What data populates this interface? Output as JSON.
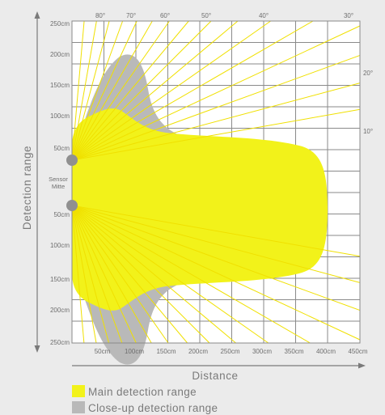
{
  "chart_data": {
    "type": "diagram",
    "ylabel": "Detection range",
    "xlabel": "Distance",
    "x_ticks": [
      "50cm",
      "100cm",
      "150cm",
      "200cm",
      "250cm",
      "300cm",
      "350cm",
      "400cm",
      "450cm"
    ],
    "y_ticks_top": [
      "250cm",
      "200cm",
      "150cm",
      "100cm",
      "50cm"
    ],
    "y_ticks_bottom": [
      "50cm",
      "100cm",
      "150cm",
      "200cm",
      "250cm"
    ],
    "sensor_label_line1": "Sensor",
    "sensor_label_line2": "Mitte",
    "angle_labels": [
      "80°",
      "70°",
      "60°",
      "50°",
      "40°",
      "30°",
      "20°",
      "10°"
    ],
    "legend": [
      {
        "label": "Main detection range",
        "color": "#f2f21a"
      },
      {
        "label": "Close-up detection range",
        "color": "#b9b9b9"
      }
    ],
    "colors": {
      "background": "#ebebeb",
      "plot_background": "#ffffff",
      "grid": "#8a8a8a",
      "main_area": "#f2f21a",
      "closeup_area": "#b9b9b9",
      "angle_lines": "#f0e000",
      "sensor_dot": "#909090",
      "text": "#6e6e6e"
    }
  }
}
